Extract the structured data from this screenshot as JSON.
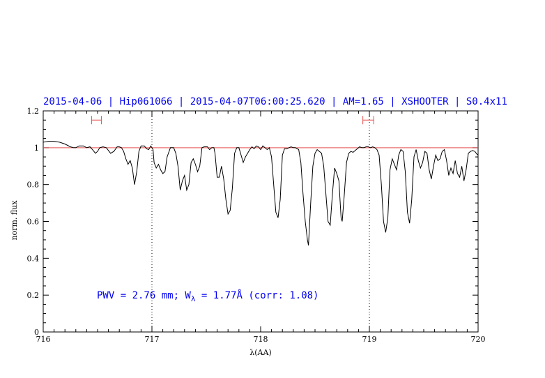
{
  "chart_data": {
    "type": "line",
    "title": "2015-04-06 | Hip061066 | 2015-04-07T06:00:25.620 | AM=1.65 | XSHOOTER | S0.4x11",
    "xlabel": "λ(AA)",
    "ylabel": "norm. flux",
    "xlim": [
      716,
      720
    ],
    "ylim": [
      0,
      1.2
    ],
    "x_ticks": [
      "716",
      "717",
      "718",
      "719",
      "720"
    ],
    "y_ticks": [
      "0",
      "0.2",
      "0.4",
      "0.6",
      "0.8",
      "1",
      "1.2"
    ],
    "annotation": "PWV = 2.76 mm; W",
    "annotation_sub": "λ",
    "annotation_rest": " = 1.77Å (corr: 1.08)",
    "reference_level": 1.0,
    "vertical_markers": [
      717,
      719
    ],
    "error_bars": [
      {
        "x_center": 716.49,
        "half_width": 0.045,
        "y": 1.15
      },
      {
        "x_center": 718.99,
        "half_width": 0.05,
        "y": 1.15
      }
    ],
    "colors": {
      "spectrum": "#000000",
      "reference": "#e8504f",
      "annotation": "#0000ee",
      "error_bars": "#e8504f"
    },
    "series": [
      {
        "values": [
          [
            716.0,
            1.03
          ],
          [
            716.05,
            1.035
          ],
          [
            716.1,
            1.035
          ],
          [
            716.15,
            1.03
          ],
          [
            716.2,
            1.02
          ],
          [
            716.25,
            1.005
          ],
          [
            716.28,
            1.0
          ],
          [
            716.3,
            1.0
          ],
          [
            716.33,
            1.01
          ],
          [
            716.37,
            1.01
          ],
          [
            716.4,
            1.0
          ],
          [
            716.43,
            1.005
          ],
          [
            716.46,
            0.985
          ],
          [
            716.48,
            0.97
          ],
          [
            716.5,
            0.98
          ],
          [
            716.52,
            1.0
          ],
          [
            716.55,
            1.005
          ],
          [
            716.58,
            1.0
          ],
          [
            716.6,
            0.985
          ],
          [
            716.62,
            0.97
          ],
          [
            716.65,
            0.98
          ],
          [
            716.68,
            1.005
          ],
          [
            716.7,
            1.005
          ],
          [
            716.72,
            1.0
          ],
          [
            716.74,
            0.98
          ],
          [
            716.76,
            0.94
          ],
          [
            716.78,
            0.91
          ],
          [
            716.8,
            0.93
          ],
          [
            716.82,
            0.89
          ],
          [
            716.84,
            0.8
          ],
          [
            716.86,
            0.87
          ],
          [
            716.88,
            0.98
          ],
          [
            716.9,
            1.01
          ],
          [
            716.93,
            1.01
          ],
          [
            716.95,
            0.995
          ],
          [
            716.97,
            0.99
          ],
          [
            716.99,
            1.01
          ],
          [
            717.01,
            0.99
          ],
          [
            717.02,
            0.92
          ],
          [
            717.04,
            0.89
          ],
          [
            717.06,
            0.91
          ],
          [
            717.08,
            0.88
          ],
          [
            717.1,
            0.86
          ],
          [
            717.12,
            0.87
          ],
          [
            717.14,
            0.95
          ],
          [
            717.17,
            1.0
          ],
          [
            717.2,
            1.0
          ],
          [
            717.22,
            0.97
          ],
          [
            717.24,
            0.9
          ],
          [
            717.26,
            0.77
          ],
          [
            717.28,
            0.82
          ],
          [
            717.3,
            0.85
          ],
          [
            717.32,
            0.77
          ],
          [
            717.34,
            0.8
          ],
          [
            717.36,
            0.92
          ],
          [
            717.38,
            0.94
          ],
          [
            717.4,
            0.91
          ],
          [
            717.42,
            0.87
          ],
          [
            717.44,
            0.9
          ],
          [
            717.46,
            1.0
          ],
          [
            717.48,
            1.005
          ],
          [
            717.51,
            1.005
          ],
          [
            717.53,
            0.99
          ],
          [
            717.55,
            1.0
          ],
          [
            717.57,
            1.0
          ],
          [
            717.58,
            0.97
          ],
          [
            717.6,
            0.84
          ],
          [
            717.62,
            0.84
          ],
          [
            717.64,
            0.9
          ],
          [
            717.66,
            0.83
          ],
          [
            717.68,
            0.72
          ],
          [
            717.7,
            0.64
          ],
          [
            717.72,
            0.66
          ],
          [
            717.74,
            0.78
          ],
          [
            717.76,
            0.97
          ],
          [
            717.78,
            1.0
          ],
          [
            717.8,
            1.0
          ],
          [
            717.82,
            0.96
          ],
          [
            717.84,
            0.92
          ],
          [
            717.86,
            0.95
          ],
          [
            717.88,
            0.97
          ],
          [
            717.9,
            0.99
          ],
          [
            717.92,
            1.005
          ],
          [
            717.94,
            0.995
          ],
          [
            717.96,
            1.01
          ],
          [
            717.98,
            1.005
          ],
          [
            718.0,
            0.99
          ],
          [
            718.02,
            1.01
          ],
          [
            718.04,
            1.0
          ],
          [
            718.06,
            0.99
          ],
          [
            718.08,
            1.0
          ],
          [
            718.1,
            0.95
          ],
          [
            718.12,
            0.8
          ],
          [
            718.14,
            0.65
          ],
          [
            718.16,
            0.62
          ],
          [
            718.18,
            0.72
          ],
          [
            718.2,
            0.96
          ],
          [
            718.22,
            0.995
          ],
          [
            718.24,
            0.995
          ],
          [
            718.26,
            1.0
          ],
          [
            718.28,
            1.005
          ],
          [
            718.3,
            1.0
          ],
          [
            718.32,
            1.0
          ],
          [
            718.35,
            0.99
          ],
          [
            718.37,
            0.92
          ],
          [
            718.39,
            0.75
          ],
          [
            718.41,
            0.6
          ],
          [
            718.43,
            0.5
          ],
          [
            718.44,
            0.47
          ],
          [
            718.46,
            0.7
          ],
          [
            718.48,
            0.9
          ],
          [
            718.5,
            0.97
          ],
          [
            718.52,
            0.99
          ],
          [
            718.54,
            0.98
          ],
          [
            718.56,
            0.97
          ],
          [
            718.58,
            0.9
          ],
          [
            718.6,
            0.75
          ],
          [
            718.62,
            0.6
          ],
          [
            718.64,
            0.58
          ],
          [
            718.66,
            0.75
          ],
          [
            718.68,
            0.89
          ],
          [
            718.7,
            0.86
          ],
          [
            718.72,
            0.82
          ],
          [
            718.74,
            0.62
          ],
          [
            718.75,
            0.6
          ],
          [
            718.77,
            0.75
          ],
          [
            718.79,
            0.92
          ],
          [
            718.81,
            0.97
          ],
          [
            718.83,
            0.98
          ],
          [
            718.85,
            0.975
          ],
          [
            718.87,
            0.985
          ],
          [
            718.89,
            0.995
          ],
          [
            718.91,
            1.005
          ],
          [
            718.93,
            1.0
          ],
          [
            718.95,
            1.0
          ],
          [
            718.97,
            1.005
          ],
          [
            718.99,
            1.005
          ],
          [
            719.01,
            1.0
          ],
          [
            719.03,
            1.005
          ],
          [
            719.05,
            1.0
          ],
          [
            719.07,
            0.99
          ],
          [
            719.09,
            0.96
          ],
          [
            719.11,
            0.8
          ],
          [
            719.13,
            0.6
          ],
          [
            719.15,
            0.54
          ],
          [
            719.17,
            0.62
          ],
          [
            719.19,
            0.88
          ],
          [
            719.21,
            0.94
          ],
          [
            719.23,
            0.91
          ],
          [
            719.25,
            0.88
          ],
          [
            719.27,
            0.96
          ],
          [
            719.29,
            0.99
          ],
          [
            719.31,
            0.98
          ],
          [
            719.33,
            0.87
          ],
          [
            719.35,
            0.65
          ],
          [
            719.37,
            0.59
          ],
          [
            719.39,
            0.72
          ],
          [
            719.41,
            0.95
          ],
          [
            719.43,
            0.99
          ],
          [
            719.45,
            0.93
          ],
          [
            719.47,
            0.89
          ],
          [
            719.49,
            0.92
          ],
          [
            719.51,
            0.98
          ],
          [
            719.53,
            0.97
          ],
          [
            719.55,
            0.88
          ],
          [
            719.57,
            0.83
          ],
          [
            719.59,
            0.9
          ],
          [
            719.61,
            0.96
          ],
          [
            719.63,
            0.93
          ],
          [
            719.65,
            0.94
          ],
          [
            719.67,
            0.98
          ],
          [
            719.69,
            0.99
          ],
          [
            719.71,
            0.93
          ],
          [
            719.73,
            0.85
          ],
          [
            719.75,
            0.89
          ],
          [
            719.77,
            0.86
          ],
          [
            719.79,
            0.93
          ],
          [
            719.81,
            0.86
          ],
          [
            719.83,
            0.84
          ],
          [
            719.85,
            0.9
          ],
          [
            719.87,
            0.82
          ],
          [
            719.89,
            0.88
          ],
          [
            719.91,
            0.97
          ],
          [
            719.93,
            0.98
          ],
          [
            719.95,
            0.985
          ],
          [
            719.97,
            0.98
          ],
          [
            719.99,
            0.965
          ],
          [
            720.0,
            0.96
          ]
        ]
      }
    ]
  }
}
